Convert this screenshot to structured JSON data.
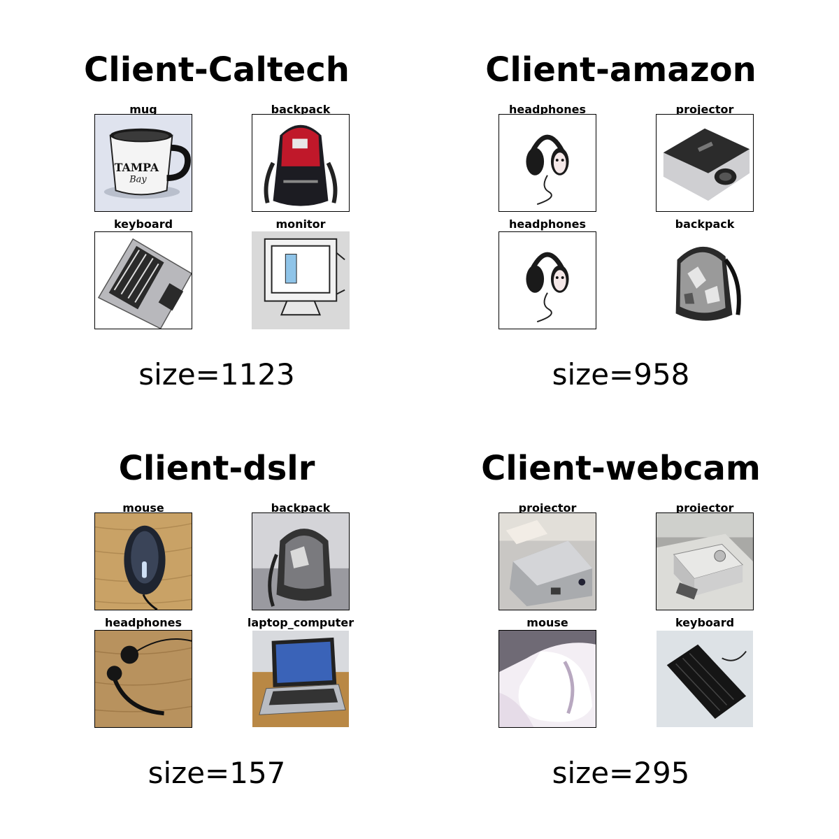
{
  "panels": [
    {
      "title": "Client-Caltech",
      "size_label": "size=1123",
      "images": [
        {
          "label": "mug",
          "icon": "mug-photo"
        },
        {
          "label": "backpack",
          "icon": "backpack-photo"
        },
        {
          "label": "keyboard",
          "icon": "keyboard-photo"
        },
        {
          "label": "monitor",
          "icon": "monitor-photo"
        }
      ]
    },
    {
      "title": "Client-amazon",
      "size_label": "size=958",
      "images": [
        {
          "label": "headphones",
          "icon": "headphones-photo"
        },
        {
          "label": "projector",
          "icon": "projector-photo"
        },
        {
          "label": "headphones",
          "icon": "headphones-photo"
        },
        {
          "label": "backpack",
          "icon": "backpack-photo"
        }
      ]
    },
    {
      "title": "Client-dslr",
      "size_label": "size=157",
      "images": [
        {
          "label": "mouse",
          "icon": "mouse-photo"
        },
        {
          "label": "backpack",
          "icon": "backpack-photo"
        },
        {
          "label": "headphones",
          "icon": "headphones-photo"
        },
        {
          "label": "laptop_computer",
          "icon": "laptop-photo"
        }
      ]
    },
    {
      "title": "Client-webcam",
      "size_label": "size=295",
      "images": [
        {
          "label": "projector",
          "icon": "projector-photo"
        },
        {
          "label": "projector",
          "icon": "projector-photo"
        },
        {
          "label": "mouse",
          "icon": "mouse-photo"
        },
        {
          "label": "keyboard",
          "icon": "keyboard-photo"
        }
      ]
    }
  ]
}
